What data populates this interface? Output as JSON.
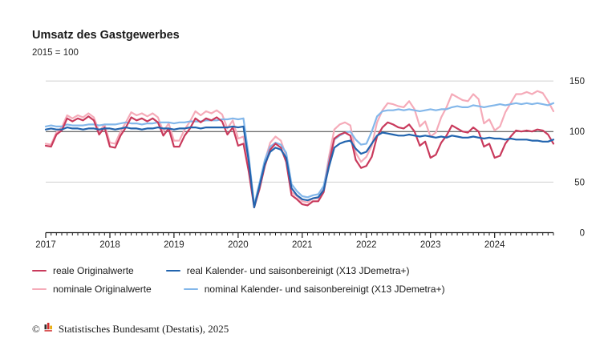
{
  "header": {
    "title": "Umsatz des Gastgewerbes",
    "subtitle": "2015 = 100"
  },
  "legend": [
    {
      "label": "reale Originalwerte",
      "color": "#c93a5c"
    },
    {
      "label": "real Kalender- und saisonbereinigt (X13 JDemetra+)",
      "color": "#2264ae"
    },
    {
      "label": "nominale Originalwerte",
      "color": "#f5abb9"
    },
    {
      "label": "nominal Kalender- und saisonbereinigt (X13 JDemetra+)",
      "color": "#83b7ea"
    }
  ],
  "footer": {
    "copyright": "©",
    "source": "Statistisches Bundesamt (Destatis), 2025"
  },
  "chart_data": {
    "type": "line",
    "title": "Umsatz des Gastgewerbes",
    "subtitle": "2015 = 100",
    "x_unit": "month",
    "x_start": "2017-01",
    "x_end": "2024-12",
    "x_tick_labels": [
      "2017",
      "2018",
      "2019",
      "2020",
      "2021",
      "2022",
      "2023",
      "2024"
    ],
    "y_ticks": [
      0,
      50,
      100,
      150
    ],
    "ylim": [
      0,
      155
    ],
    "reference_line": 100,
    "grid": "horizontal",
    "legend_position": "bottom",
    "series": [
      {
        "name": "reale Originalwerte",
        "id": "reale-originalwerte",
        "color": "#c93a5c",
        "values": [
          86,
          85,
          97,
          101,
          113,
          110,
          113,
          111,
          115,
          111,
          97,
          104,
          85,
          84,
          96,
          104,
          114,
          111,
          113,
          110,
          113,
          109,
          96,
          103,
          85,
          85,
          96,
          103,
          113,
          109,
          113,
          111,
          114,
          110,
          97,
          104,
          86,
          88,
          60,
          25,
          43,
          66,
          82,
          88,
          84,
          70,
          37,
          33,
          28,
          27,
          31,
          31,
          40,
          68,
          93,
          97,
          99,
          96,
          72,
          64,
          66,
          75,
          95,
          104,
          109,
          107,
          104,
          103,
          107,
          100,
          86,
          90,
          74,
          77,
          89,
          96,
          106,
          103,
          100,
          99,
          104,
          100,
          85,
          88,
          74,
          76,
          88,
          95,
          101,
          100,
          101,
          100,
          102,
          101,
          97,
          88
        ]
      },
      {
        "name": "real Kalender- und saisonbereinigt (X13 JDemetra+)",
        "id": "real-saisonbereinigt",
        "color": "#2264ae",
        "values": [
          102,
          103,
          102,
          102,
          104,
          103,
          103,
          102,
          103,
          103,
          102,
          103,
          103,
          102,
          103,
          104,
          103,
          103,
          102,
          103,
          103,
          104,
          103,
          103,
          102,
          103,
          103,
          104,
          104,
          103,
          104,
          104,
          104,
          104,
          104,
          105,
          104,
          105,
          70,
          25,
          46,
          68,
          80,
          84,
          82,
          74,
          44,
          37,
          33,
          32,
          34,
          35,
          42,
          65,
          84,
          88,
          90,
          91,
          83,
          78,
          80,
          88,
          96,
          99,
          98,
          97,
          96,
          96,
          97,
          96,
          95,
          96,
          95,
          94,
          95,
          94,
          96,
          95,
          94,
          94,
          95,
          94,
          93,
          94,
          93,
          93,
          92,
          93,
          92,
          92,
          92,
          91,
          91,
          90,
          90,
          92
        ]
      },
      {
        "name": "nominale Originalwerte",
        "id": "nominale-originalwerte",
        "color": "#f5abb9",
        "values": [
          88,
          87,
          99,
          104,
          116,
          113,
          116,
          114,
          118,
          114,
          100,
          107,
          89,
          88,
          100,
          109,
          119,
          116,
          118,
          115,
          118,
          114,
          100,
          108,
          91,
          91,
          102,
          110,
          120,
          116,
          120,
          118,
          121,
          117,
          103,
          111,
          93,
          95,
          64,
          27,
          46,
          71,
          89,
          95,
          91,
          76,
          40,
          36,
          31,
          30,
          34,
          34,
          44,
          75,
          102,
          107,
          109,
          106,
          79,
          70,
          75,
          86,
          109,
          121,
          128,
          127,
          125,
          124,
          130,
          122,
          105,
          110,
          95,
          99,
          114,
          124,
          137,
          134,
          131,
          130,
          137,
          132,
          108,
          112,
          101,
          105,
          119,
          128,
          137,
          137,
          139,
          137,
          140,
          138,
          130,
          120
        ]
      },
      {
        "name": "nominal Kalender- und saisonbereinigt (X13 JDemetra+)",
        "id": "nominal-saisonbereinigt",
        "color": "#83b7ea",
        "values": [
          105,
          106,
          105,
          105,
          107,
          106,
          106,
          106,
          107,
          107,
          106,
          107,
          107,
          107,
          108,
          109,
          108,
          108,
          107,
          108,
          108,
          109,
          109,
          109,
          108,
          109,
          109,
          110,
          110,
          110,
          111,
          111,
          111,
          112,
          112,
          113,
          112,
          113,
          75,
          27,
          49,
          72,
          85,
          89,
          87,
          79,
          48,
          41,
          36,
          35,
          37,
          38,
          46,
          71,
          92,
          96,
          99,
          100,
          92,
          87,
          88,
          100,
          115,
          120,
          121,
          121,
          122,
          121,
          122,
          121,
          120,
          121,
          122,
          121,
          122,
          122,
          124,
          125,
          124,
          124,
          126,
          125,
          124,
          125,
          126,
          127,
          126,
          127,
          128,
          127,
          128,
          127,
          128,
          127,
          126,
          128
        ]
      }
    ]
  }
}
